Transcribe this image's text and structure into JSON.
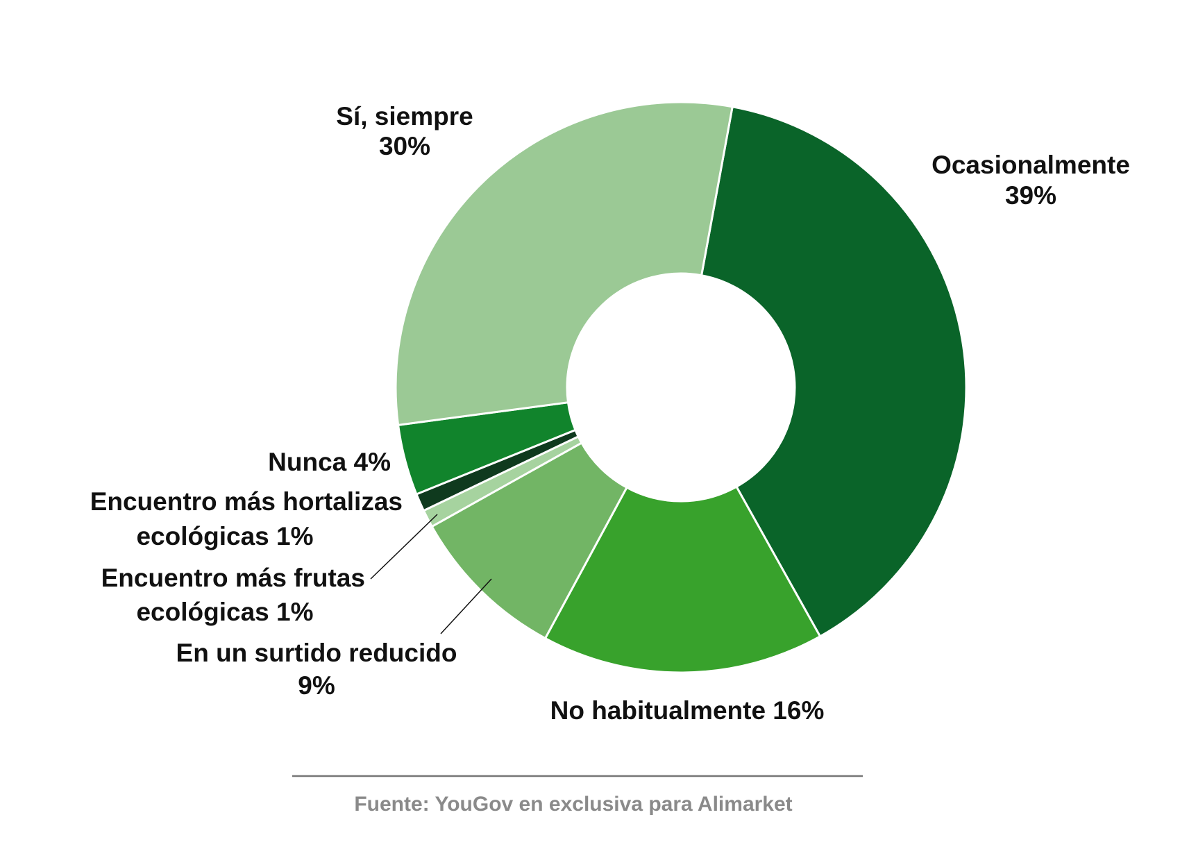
{
  "chart_data": {
    "type": "pie",
    "donut": true,
    "start_angle_deg": 10.4,
    "direction": "clockwise",
    "slices": [
      {
        "name": "Ocasionalmente",
        "value": 39,
        "label": "Ocasionalmente",
        "pct": "39%",
        "color": "#0a6429"
      },
      {
        "name": "No habitualmente",
        "value": 16,
        "label": "No habitualmente 16%",
        "color": "#38a22c"
      },
      {
        "name": "En un surtido reducido",
        "value": 9,
        "label": "En un surtido reducido",
        "pct": "9%",
        "color": "#72b565"
      },
      {
        "name": "Encuentro más frutas ecológicas",
        "value": 1,
        "label": "Encuentro más frutas",
        "label2": "ecológicas 1%",
        "color": "#a6d39f"
      },
      {
        "name": "Encuentro más hortalizas ecológicas",
        "value": 1,
        "label": "Encuentro más hortalizas",
        "label2": "ecológicas 1%",
        "color": "#0f3a1e"
      },
      {
        "name": "Nunca",
        "value": 4,
        "label": "Nunca 4%",
        "color": "#11842c"
      },
      {
        "name": "Sí, siempre",
        "value": 30,
        "label": "Sí, siempre",
        "pct": "30%",
        "color": "#9bc995"
      }
    ]
  },
  "footer": {
    "source": "Fuente: YouGov en exclusiva para Alimarket"
  }
}
